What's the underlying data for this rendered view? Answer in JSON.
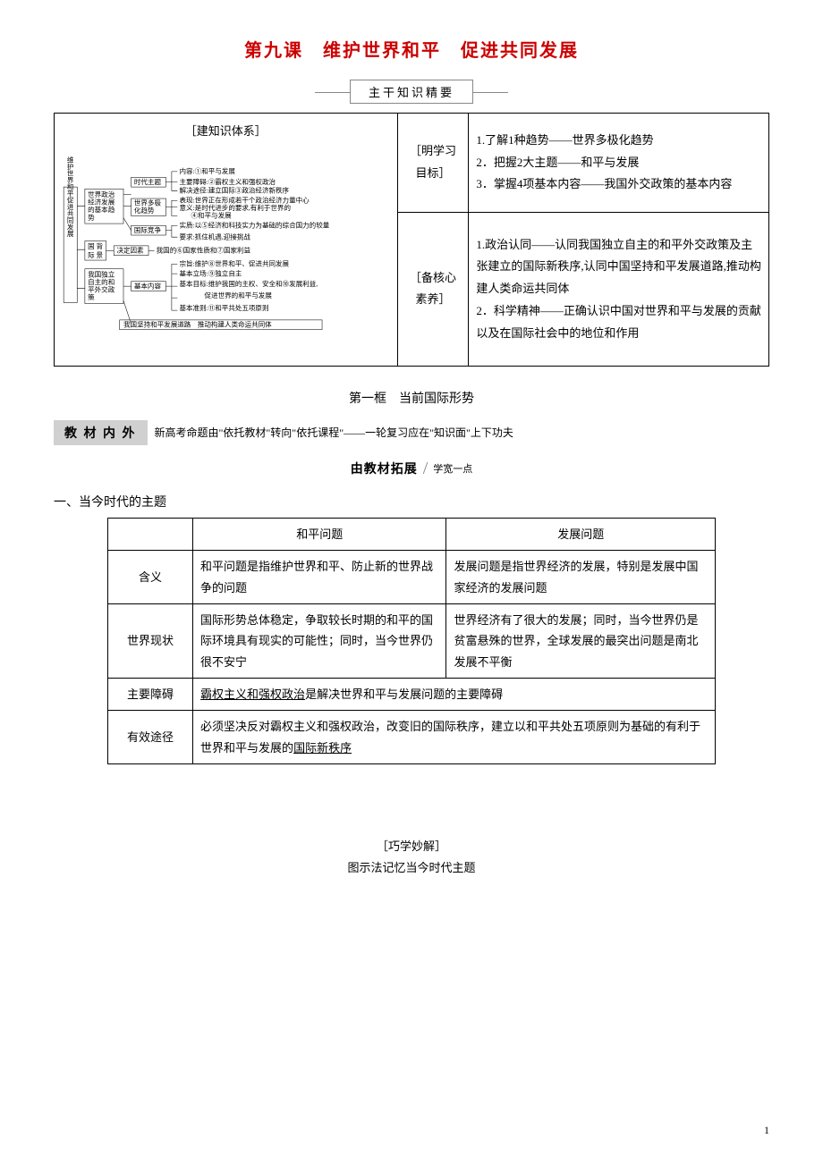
{
  "title": "第九课　维护世界和平　促进共同发展",
  "key_knowledge_label": "主干知识精要",
  "main_grid": {
    "diagram_title": "［建知识体系］",
    "goals_label": "［明学习\n目标］",
    "goals_text": "1.了解1种趋势——世界多极化趋势\n2．把握2大主题——和平与发展\n3．掌握4项基本内容——我国外交政策的基本内容",
    "core_label": "［备核心\n素养］",
    "core_text": "1.政治认同——认同我国独立自主的和平外交政策及主张建立的国际新秩序,认同中国坚持和平发展道路,推动构建人类命运共同体\n2．科学精神——正确认识中国对世界和平与发展的贡献以及在国际社会中的地位和作用"
  },
  "diagram": {
    "root": "维护世界和平促进共同发展",
    "branch1": {
      "box": "世界政治\n经济发展\n的基本趋\n势",
      "sub1_box": "时代主题",
      "sub1_lines": [
        "内容:①和平与发展",
        "主要障碍:②霸权主义和强权政治",
        "解决途径:建立国际③政治经济新秩序"
      ],
      "sub2_box": "世界多极\n化趋势",
      "sub2_lines": [
        "表现:世界正在形成若干个政治经济力量中心",
        "意义:是时代进步的要求,有利于世界的",
        "④和平与发展"
      ],
      "sub3_box": "国际竞争",
      "sub3_lines": [
        "实质:以⑤经济和科技实力为基础的综合国力的较量",
        "要求:抓住机遇,迎接挑战"
      ]
    },
    "branch2": {
      "box": "国 背\n际 景",
      "sub_box": "决定因素",
      "sub_line": "我国的⑥国家性质和⑦国家利益"
    },
    "branch3": {
      "box": "我国独立\n自主的和\n平外交政\n策",
      "sub_box": "基本内容",
      "sub_lines": [
        "宗旨:维护⑧世界和平、促进共同发展",
        "基本立场:⑨独立自主",
        "基本目标:维护我国的主权、安全和⑩发展利益,",
        "促进世界的和平与发展",
        "基本准则:⑪和平共处五项原则"
      ],
      "bottom": "我国坚持和平发展道路　推动构建人类命运共同体"
    }
  },
  "subtitle": "第一框　当前国际形势",
  "banner": {
    "box": "教 材 内 外",
    "desc": "新高考命题由\"依托教材\"转向\"依托课程\"——一轮复习应在\"知识面\"上下功夫"
  },
  "expand": {
    "main": "由教材拓展",
    "sub": "学宽一点"
  },
  "topic1_heading": "一、当今时代的主题",
  "table": {
    "col_head_1": "和平问题",
    "col_head_2": "发展问题",
    "rows": [
      {
        "label": "含义",
        "c1": "和平问题是指维护世界和平、防止新的世界战争的问题",
        "c2": "发展问题是指世界经济的发展，特别是发展中国家经济的发展问题"
      },
      {
        "label": "世界现状",
        "c1": "国际形势总体稳定，争取较长时期的和平的国际环境具有现实的可能性；同时，当今世界仍很不安宁",
        "c2": "世界经济有了很大的发展；同时，当今世界仍是贫富悬殊的世界，全球发展的最突出问题是南北发展不平衡"
      },
      {
        "label": "主要障碍",
        "merged": "<span class='underline'>霸权主义和强权政治</span>是解决世界和平与发展问题的主要障碍"
      },
      {
        "label": "有效途径",
        "merged": "必须坚决反对霸权主义和强权政治，改变旧的国际秩序，建立以和平共处五项原则为基础的有利于世界和平与发展的<span class='underline'>国际新秩序</span>"
      }
    ]
  },
  "bottom": {
    "line1": "［巧学妙解］",
    "line2": "图示法记忆当今时代主题"
  },
  "page_num": "1"
}
